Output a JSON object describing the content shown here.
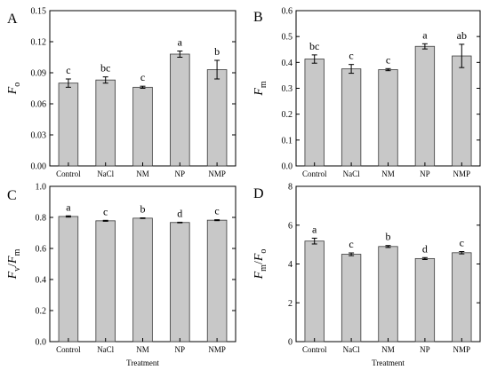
{
  "chart_data": [
    {
      "panel": "A",
      "type": "bar",
      "categories": [
        "Control",
        "NaCl",
        "NM",
        "NP",
        "NMP"
      ],
      "values": [
        0.08,
        0.083,
        0.076,
        0.108,
        0.093
      ],
      "errors": [
        0.004,
        0.003,
        0.001,
        0.003,
        0.009
      ],
      "letters": [
        "c",
        "bc",
        "c",
        "a",
        "b"
      ],
      "ylabel": "F",
      "ylabel_sub": "o",
      "ylim": [
        0,
        0.15
      ],
      "yticks": [
        "0.00",
        "0.03",
        "0.06",
        "0.09",
        "0.12",
        "0.15"
      ],
      "xlabel": ""
    },
    {
      "panel": "B",
      "type": "bar",
      "categories": [
        "Control",
        "NaCl",
        "NM",
        "NP",
        "NMP"
      ],
      "values": [
        0.413,
        0.375,
        0.372,
        0.462,
        0.425
      ],
      "errors": [
        0.016,
        0.017,
        0.004,
        0.01,
        0.045
      ],
      "letters": [
        "bc",
        "c",
        "c",
        "a",
        "ab"
      ],
      "ylabel": "F",
      "ylabel_sub": "m",
      "ylim": [
        0,
        0.6
      ],
      "yticks": [
        "0.0",
        "0.1",
        "0.2",
        "0.3",
        "0.4",
        "0.5",
        "0.6"
      ],
      "xlabel": ""
    },
    {
      "panel": "C",
      "type": "bar",
      "categories": [
        "Control",
        "NaCl",
        "NM",
        "NP",
        "NMP"
      ],
      "values": [
        0.806,
        0.778,
        0.795,
        0.767,
        0.782
      ],
      "errors": [
        0.004,
        0.003,
        0.002,
        0.002,
        0.003
      ],
      "letters": [
        "a",
        "c",
        "b",
        "d",
        "c"
      ],
      "ylabel": "F",
      "ylabel_sub": "v",
      "ylabel2": "F",
      "ylabel2_sub": "m",
      "ylim": [
        0,
        1.0
      ],
      "yticks": [
        "0.0",
        "0.2",
        "0.4",
        "0.6",
        "0.8",
        "1.0"
      ],
      "xlabel": "Treatment"
    },
    {
      "panel": "D",
      "type": "bar",
      "categories": [
        "Control",
        "NaCl",
        "NM",
        "NP",
        "NMP"
      ],
      "values": [
        5.18,
        4.5,
        4.9,
        4.28,
        4.58
      ],
      "errors": [
        0.15,
        0.07,
        0.05,
        0.05,
        0.06
      ],
      "letters": [
        "a",
        "c",
        "b",
        "d",
        "c"
      ],
      "ylabel": "F",
      "ylabel_sub": "m",
      "ylabel2": "F",
      "ylabel2_sub": "o",
      "ylim": [
        0,
        8
      ],
      "yticks": [
        "0",
        "2",
        "4",
        "6",
        "8"
      ],
      "xlabel": "Treatment"
    }
  ],
  "colors": {
    "bar_fill": "#c8c8c8",
    "bar_stroke": "#3a3a3a",
    "axis": "#000000"
  }
}
